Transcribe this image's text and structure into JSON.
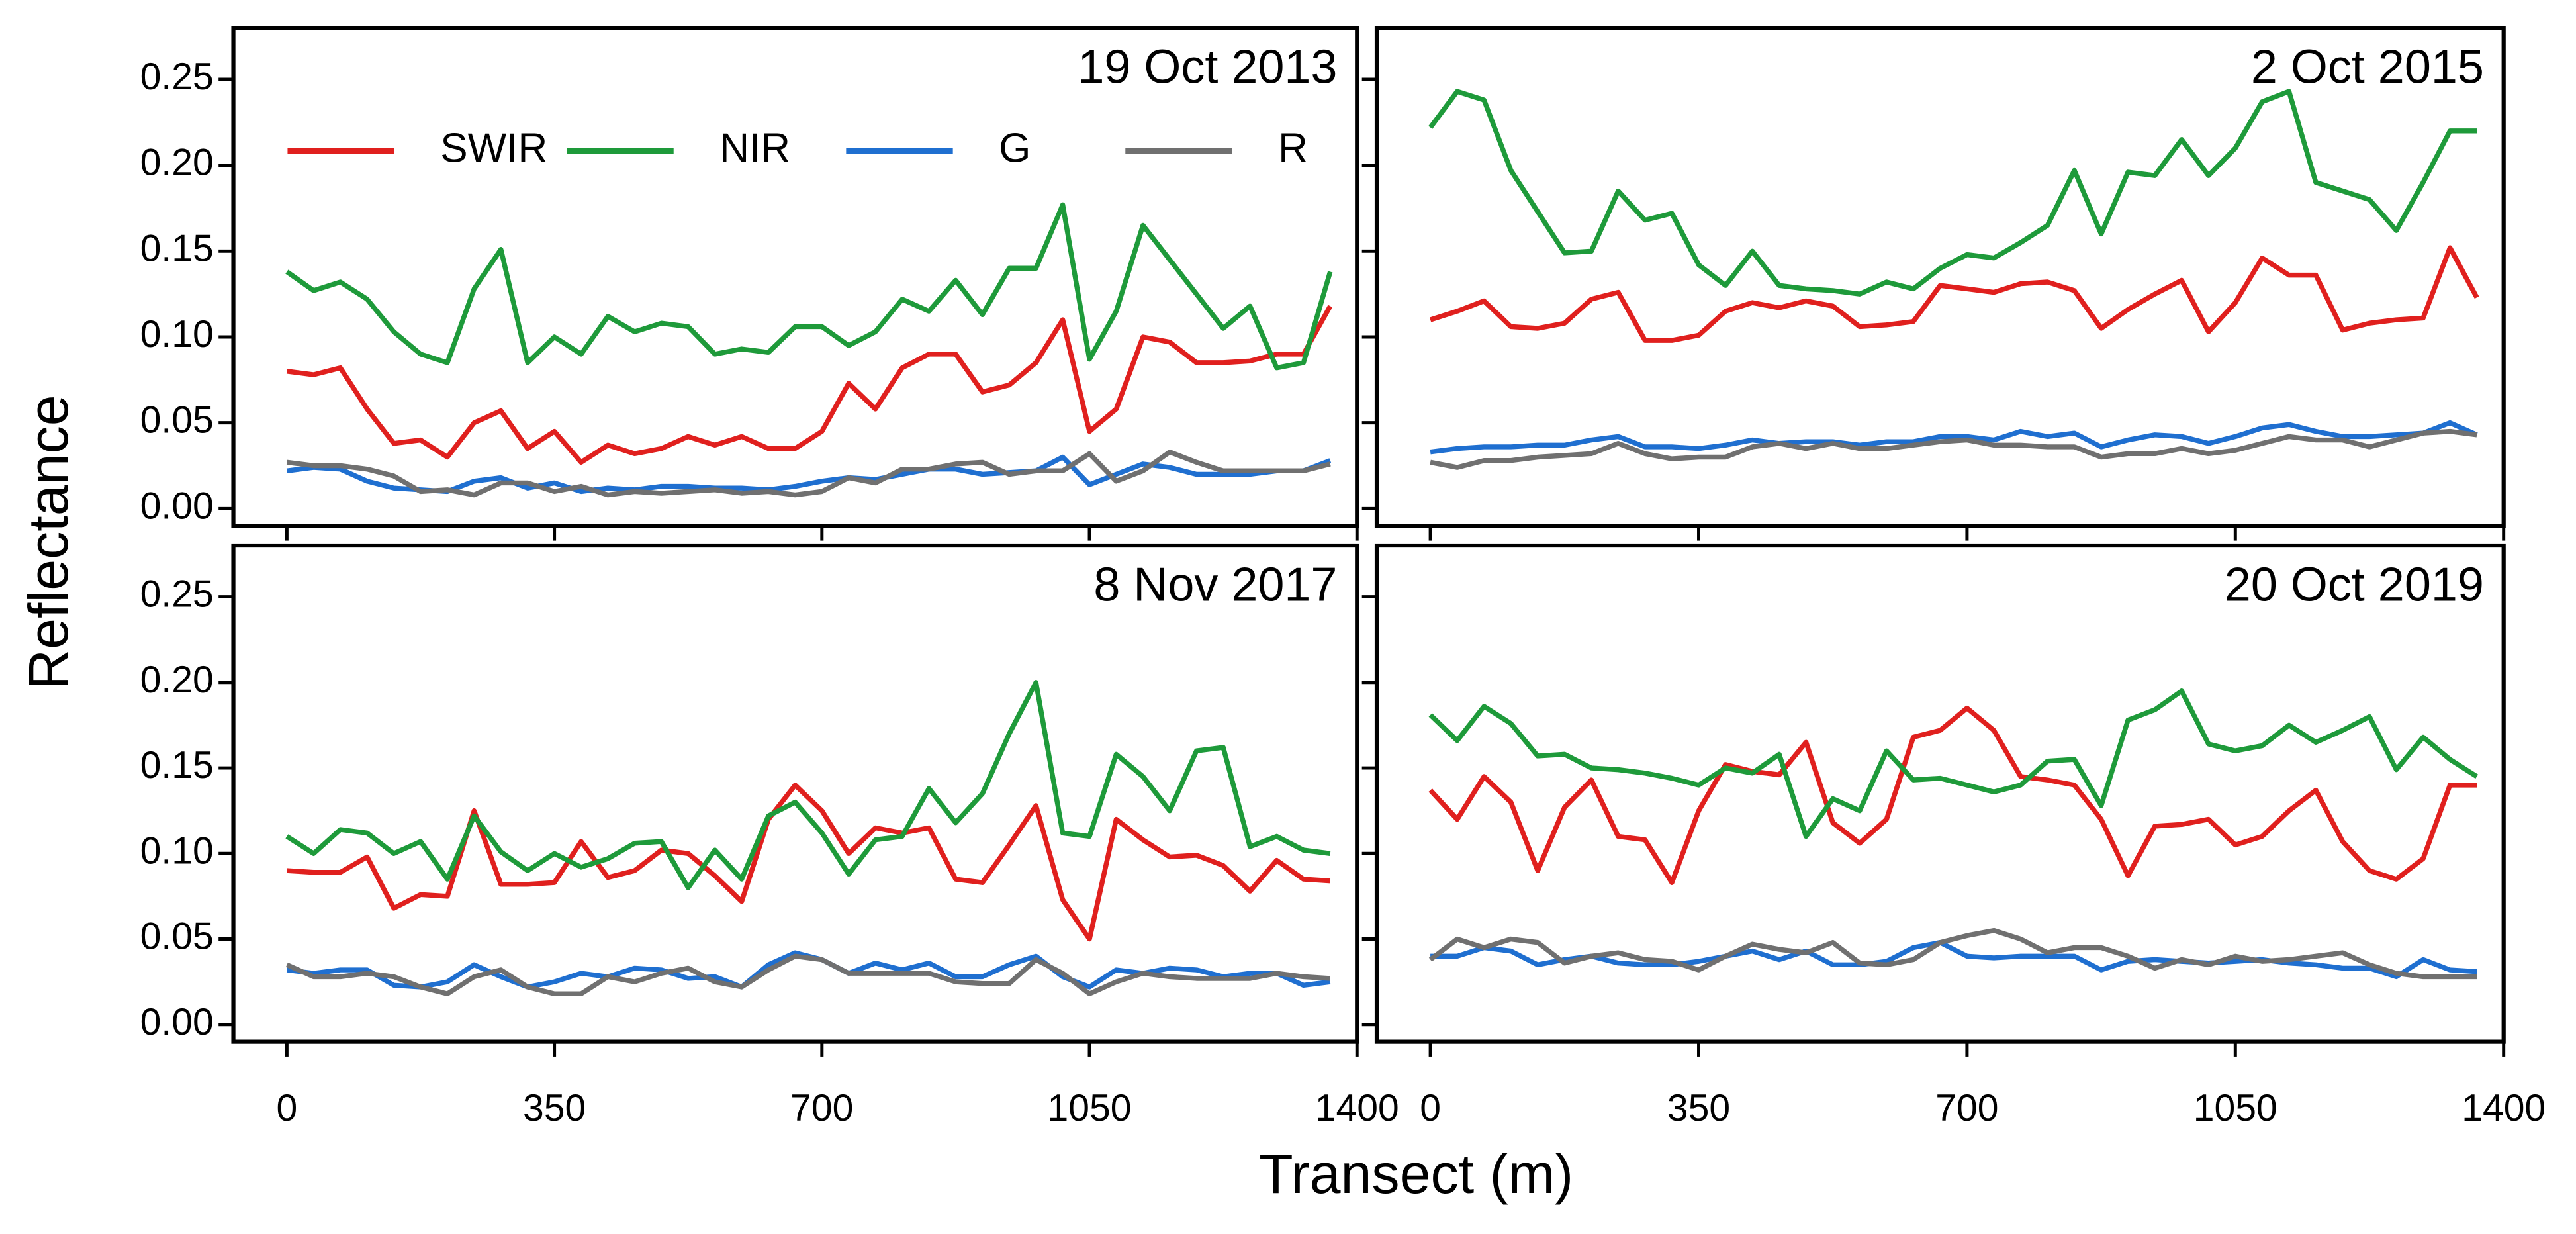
{
  "figure": {
    "xlabel": "Transect (m)",
    "ylabel": "Reflectance"
  },
  "chart_data": [
    {
      "type": "line",
      "title": "19 Oct 2013",
      "x": [
        0,
        35,
        70,
        105,
        140,
        175,
        210,
        245,
        280,
        315,
        350,
        385,
        420,
        455,
        490,
        525,
        560,
        595,
        630,
        665,
        700,
        735,
        770,
        805,
        840,
        875,
        910,
        945,
        980,
        1015,
        1050,
        1085,
        1120,
        1155,
        1190,
        1225,
        1260,
        1295,
        1330,
        1365
      ],
      "xlim": [
        -70,
        1400
      ],
      "xticks": [
        0,
        350,
        700,
        1050,
        1400
      ],
      "ylim": [
        -0.01,
        0.28
      ],
      "yticks": [
        {
          "value": 0,
          "label": "0.00"
        },
        0.05,
        {
          "value": 0.1,
          "label": "0.10"
        },
        0.15,
        {
          "value": 0.2,
          "label": "0.20"
        },
        0.25
      ],
      "series": [
        {
          "name": "SWIR",
          "color": "#e0201e",
          "values": [
            0.08,
            0.078,
            0.082,
            0.058,
            0.038,
            0.04,
            0.03,
            0.05,
            0.057,
            0.035,
            0.045,
            0.027,
            0.037,
            0.032,
            0.035,
            0.042,
            0.037,
            0.042,
            0.035,
            0.035,
            0.045,
            0.073,
            0.058,
            0.082,
            0.09,
            0.09,
            0.068,
            0.072,
            0.085,
            0.11,
            0.045,
            0.058,
            0.1,
            0.097,
            0.085,
            0.085,
            0.086,
            0.09,
            0.09,
            0.118
          ]
        },
        {
          "name": "NIR",
          "color": "#1e9a3a",
          "values": [
            0.138,
            0.127,
            0.132,
            0.122,
            0.103,
            0.09,
            0.085,
            0.128,
            0.151,
            0.085,
            0.1,
            0.09,
            0.112,
            0.103,
            0.108,
            0.106,
            0.09,
            0.093,
            0.091,
            0.106,
            0.106,
            0.095,
            0.103,
            0.122,
            0.115,
            0.133,
            0.113,
            0.14,
            0.14,
            0.177,
            0.087,
            0.115,
            0.165,
            0.145,
            0.125,
            0.105,
            0.118,
            0.082,
            0.085,
            0.138
          ]
        },
        {
          "name": "G",
          "color": "#1f6fd0",
          "values": [
            0.022,
            0.024,
            0.023,
            0.016,
            0.012,
            0.011,
            0.01,
            0.016,
            0.018,
            0.012,
            0.015,
            0.01,
            0.012,
            0.011,
            0.013,
            0.013,
            0.012,
            0.012,
            0.011,
            0.013,
            0.016,
            0.018,
            0.017,
            0.02,
            0.023,
            0.023,
            0.02,
            0.021,
            0.022,
            0.03,
            0.014,
            0.02,
            0.026,
            0.024,
            0.02,
            0.02,
            0.02,
            0.022,
            0.022,
            0.028
          ]
        },
        {
          "name": "R",
          "color": "#707070",
          "values": [
            0.027,
            0.025,
            0.025,
            0.023,
            0.019,
            0.01,
            0.011,
            0.008,
            0.015,
            0.015,
            0.01,
            0.013,
            0.008,
            0.01,
            0.009,
            0.01,
            0.011,
            0.009,
            0.01,
            0.008,
            0.01,
            0.018,
            0.015,
            0.023,
            0.023,
            0.026,
            0.027,
            0.02,
            0.022,
            0.022,
            0.032,
            0.016,
            0.022,
            0.033,
            0.027,
            0.022,
            0.022,
            0.022,
            0.022,
            0.026
          ]
        }
      ]
    },
    {
      "type": "line",
      "title": "2 Oct 2015",
      "x": [
        0,
        35,
        70,
        105,
        140,
        175,
        210,
        245,
        280,
        315,
        350,
        385,
        420,
        455,
        490,
        525,
        560,
        595,
        630,
        665,
        700,
        735,
        770,
        805,
        840,
        875,
        910,
        945,
        980,
        1015,
        1050,
        1085,
        1120,
        1155,
        1190,
        1225,
        1260,
        1295,
        1330,
        1365
      ],
      "xlim": [
        -70,
        1400
      ],
      "xticks": [
        0,
        350,
        700,
        1050,
        1400
      ],
      "ylim": [
        -0.01,
        0.28
      ],
      "yticks": [
        {
          "value": 0,
          "label": "0.00"
        },
        0.05,
        {
          "value": 0.1,
          "label": "0.10"
        },
        0.15,
        {
          "value": 0.2,
          "label": "0.20"
        },
        0.25
      ],
      "series": [
        {
          "color": "#e0201e",
          "values": [
            0.11,
            0.115,
            0.121,
            0.106,
            0.105,
            0.108,
            0.122,
            0.126,
            0.098,
            0.098,
            0.101,
            0.115,
            0.12,
            0.117,
            0.121,
            0.118,
            0.106,
            0.107,
            0.109,
            0.13,
            0.128,
            0.126,
            0.131,
            0.132,
            0.127,
            0.105,
            0.116,
            0.125,
            0.133,
            0.103,
            0.12,
            0.146,
            0.136,
            0.136,
            0.104,
            0.108,
            0.11,
            0.111,
            0.152,
            0.123
          ]
        },
        {
          "color": "#1e9a3a",
          "values": [
            0.222,
            0.243,
            0.238,
            0.197,
            0.173,
            0.149,
            0.15,
            0.185,
            0.168,
            0.172,
            0.142,
            0.13,
            0.15,
            0.13,
            0.128,
            0.127,
            0.125,
            0.132,
            0.128,
            0.14,
            0.148,
            0.146,
            0.155,
            0.165,
            0.197,
            0.16,
            0.196,
            0.194,
            0.215,
            0.194,
            0.21,
            0.237,
            0.243,
            0.19,
            0.185,
            0.18,
            0.162,
            0.19,
            0.22,
            0.22
          ]
        },
        {
          "color": "#1f6fd0",
          "values": [
            0.033,
            0.035,
            0.036,
            0.036,
            0.037,
            0.037,
            0.04,
            0.042,
            0.036,
            0.036,
            0.035,
            0.037,
            0.04,
            0.038,
            0.039,
            0.039,
            0.037,
            0.039,
            0.039,
            0.042,
            0.042,
            0.04,
            0.045,
            0.042,
            0.044,
            0.036,
            0.04,
            0.043,
            0.042,
            0.038,
            0.042,
            0.047,
            0.049,
            0.045,
            0.042,
            0.042,
            0.043,
            0.044,
            0.05,
            0.043
          ]
        },
        {
          "color": "#707070",
          "values": [
            0.027,
            0.024,
            0.028,
            0.028,
            0.03,
            0.031,
            0.032,
            0.038,
            0.032,
            0.029,
            0.03,
            0.03,
            0.036,
            0.038,
            0.035,
            0.038,
            0.035,
            0.035,
            0.037,
            0.039,
            0.04,
            0.037,
            0.037,
            0.036,
            0.036,
            0.03,
            0.032,
            0.032,
            0.035,
            0.032,
            0.034,
            0.038,
            0.042,
            0.04,
            0.04,
            0.036,
            0.04,
            0.044,
            0.045,
            0.043
          ]
        }
      ]
    },
    {
      "type": "line",
      "title": "8 Nov 2017",
      "x": [
        0,
        35,
        70,
        105,
        140,
        175,
        210,
        245,
        280,
        315,
        350,
        385,
        420,
        455,
        490,
        525,
        560,
        595,
        630,
        665,
        700,
        735,
        770,
        805,
        840,
        875,
        910,
        945,
        980,
        1015,
        1050,
        1085,
        1120,
        1155,
        1190,
        1225,
        1260,
        1295,
        1330,
        1365
      ],
      "xlim": [
        -70,
        1400
      ],
      "xticks": [
        0,
        350,
        700,
        1050,
        1400
      ],
      "ylim": [
        -0.01,
        0.28
      ],
      "yticks": [
        {
          "value": 0,
          "label": "0.00"
        },
        0.05,
        {
          "value": 0.1,
          "label": "0.10"
        },
        0.15,
        {
          "value": 0.2,
          "label": "0.20"
        },
        0.25
      ],
      "series": [
        {
          "color": "#e0201e",
          "values": [
            0.09,
            0.089,
            0.089,
            0.098,
            0.068,
            0.076,
            0.075,
            0.125,
            0.082,
            0.082,
            0.083,
            0.107,
            0.086,
            0.09,
            0.102,
            0.1,
            0.087,
            0.072,
            0.12,
            0.14,
            0.125,
            0.1,
            0.115,
            0.112,
            0.115,
            0.085,
            0.083,
            0.105,
            0.128,
            0.073,
            0.05,
            0.12,
            0.108,
            0.098,
            0.099,
            0.093,
            0.078,
            0.096,
            0.085,
            0.084
          ]
        },
        {
          "color": "#1e9a3a",
          "values": [
            0.11,
            0.1,
            0.114,
            0.112,
            0.1,
            0.107,
            0.085,
            0.122,
            0.101,
            0.09,
            0.1,
            0.092,
            0.097,
            0.106,
            0.107,
            0.08,
            0.102,
            0.085,
            0.122,
            0.13,
            0.112,
            0.088,
            0.108,
            0.11,
            0.138,
            0.118,
            0.135,
            0.17,
            0.2,
            0.112,
            0.11,
            0.158,
            0.145,
            0.125,
            0.16,
            0.162,
            0.104,
            0.11,
            0.102,
            0.1
          ]
        },
        {
          "color": "#1f6fd0",
          "values": [
            0.032,
            0.03,
            0.032,
            0.032,
            0.023,
            0.022,
            0.025,
            0.035,
            0.028,
            0.022,
            0.025,
            0.03,
            0.028,
            0.033,
            0.032,
            0.027,
            0.028,
            0.022,
            0.035,
            0.042,
            0.038,
            0.03,
            0.036,
            0.032,
            0.036,
            0.028,
            0.028,
            0.035,
            0.04,
            0.028,
            0.022,
            0.032,
            0.03,
            0.033,
            0.032,
            0.028,
            0.03,
            0.03,
            0.023,
            0.025
          ]
        },
        {
          "color": "#707070",
          "values": [
            0.035,
            0.028,
            0.028,
            0.03,
            0.028,
            0.022,
            0.018,
            0.028,
            0.032,
            0.022,
            0.018,
            0.018,
            0.028,
            0.025,
            0.03,
            0.033,
            0.025,
            0.022,
            0.032,
            0.04,
            0.038,
            0.03,
            0.03,
            0.03,
            0.03,
            0.025,
            0.024,
            0.024,
            0.038,
            0.03,
            0.018,
            0.025,
            0.03,
            0.028,
            0.027,
            0.027,
            0.027,
            0.03,
            0.028,
            0.027
          ]
        }
      ]
    },
    {
      "type": "line",
      "title": "20 Oct 2019",
      "x": [
        0,
        35,
        70,
        105,
        140,
        175,
        210,
        245,
        280,
        315,
        350,
        385,
        420,
        455,
        490,
        525,
        560,
        595,
        630,
        665,
        700,
        735,
        770,
        805,
        840,
        875,
        910,
        945,
        980,
        1015,
        1050,
        1085,
        1120,
        1155,
        1190,
        1225,
        1260,
        1295,
        1330,
        1365
      ],
      "xlim": [
        -70,
        1400
      ],
      "xticks": [
        0,
        350,
        700,
        1050,
        1400
      ],
      "ylim": [
        -0.01,
        0.28
      ],
      "yticks": [
        {
          "value": 0,
          "label": "0.00"
        },
        0.05,
        {
          "value": 0.1,
          "label": "0.10"
        },
        0.15,
        {
          "value": 0.2,
          "label": "0.20"
        },
        0.25
      ],
      "series": [
        {
          "color": "#e0201e",
          "values": [
            0.137,
            0.12,
            0.145,
            0.13,
            0.09,
            0.127,
            0.143,
            0.11,
            0.108,
            0.083,
            0.125,
            0.152,
            0.148,
            0.146,
            0.165,
            0.118,
            0.106,
            0.12,
            0.168,
            0.172,
            0.185,
            0.172,
            0.145,
            0.143,
            0.14,
            0.12,
            0.087,
            0.116,
            0.117,
            0.12,
            0.105,
            0.11,
            0.125,
            0.137,
            0.107,
            0.09,
            0.085,
            0.097,
            0.14,
            0.14
          ]
        },
        {
          "color": "#1e9a3a",
          "values": [
            0.181,
            0.166,
            0.186,
            0.176,
            0.157,
            0.158,
            0.15,
            0.149,
            0.147,
            0.144,
            0.14,
            0.15,
            0.147,
            0.158,
            0.11,
            0.132,
            0.125,
            0.16,
            0.143,
            0.144,
            0.14,
            0.136,
            0.14,
            0.154,
            0.155,
            0.128,
            0.178,
            0.184,
            0.195,
            0.164,
            0.16,
            0.163,
            0.175,
            0.165,
            0.172,
            0.18,
            0.149,
            0.168,
            0.155,
            0.145
          ]
        },
        {
          "color": "#1f6fd0",
          "values": [
            0.04,
            0.04,
            0.045,
            0.043,
            0.035,
            0.038,
            0.04,
            0.036,
            0.035,
            0.035,
            0.037,
            0.04,
            0.043,
            0.038,
            0.043,
            0.035,
            0.035,
            0.037,
            0.045,
            0.048,
            0.04,
            0.039,
            0.04,
            0.04,
            0.04,
            0.032,
            0.037,
            0.038,
            0.037,
            0.036,
            0.037,
            0.038,
            0.036,
            0.035,
            0.033,
            0.033,
            0.028,
            0.038,
            0.032,
            0.031
          ]
        },
        {
          "color": "#707070",
          "values": [
            0.038,
            0.05,
            0.045,
            0.05,
            0.048,
            0.036,
            0.04,
            0.042,
            0.038,
            0.037,
            0.032,
            0.04,
            0.047,
            0.044,
            0.042,
            0.048,
            0.036,
            0.035,
            0.038,
            0.048,
            0.052,
            0.055,
            0.05,
            0.042,
            0.045,
            0.045,
            0.04,
            0.033,
            0.038,
            0.035,
            0.04,
            0.037,
            0.038,
            0.04,
            0.042,
            0.035,
            0.03,
            0.028,
            0.028,
            0.028
          ]
        }
      ]
    }
  ]
}
